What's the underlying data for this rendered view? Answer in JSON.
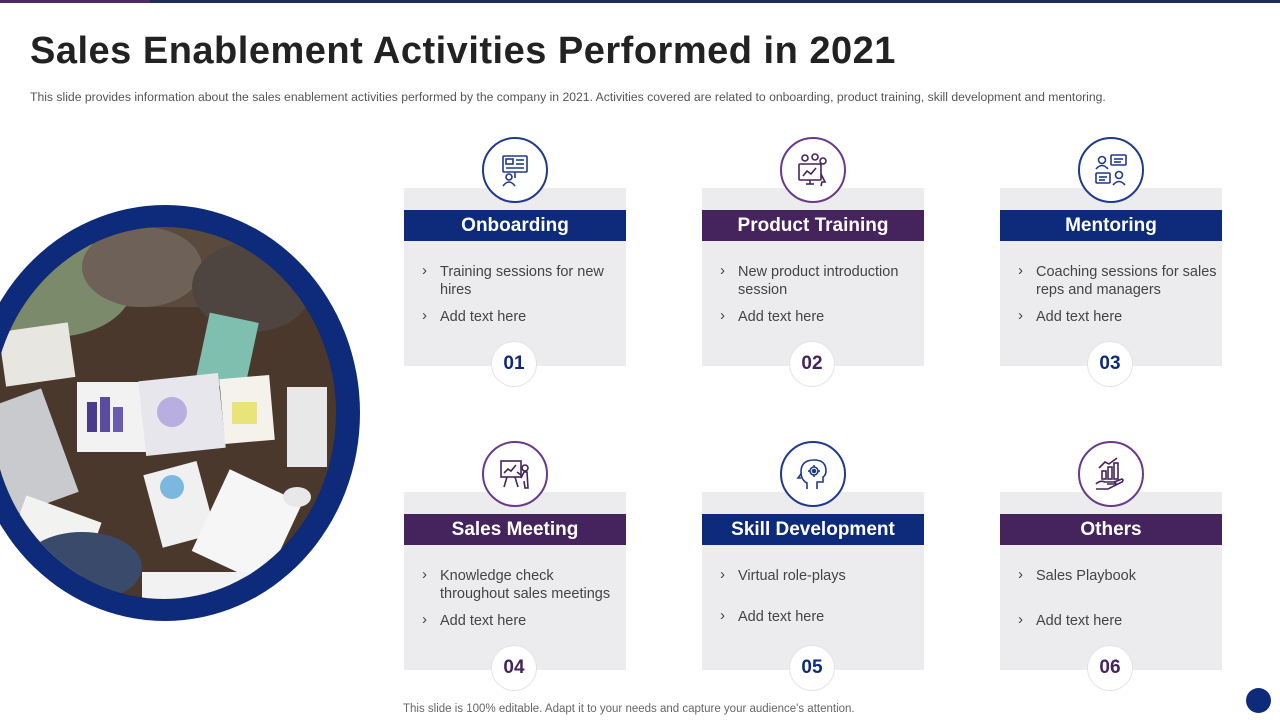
{
  "title": "Sales Enablement Activities Performed in 2021",
  "subtitle": "This slide provides  information  about  the sales enablement  activities  performed  by the company in 2021.  Activities covered  are related to onboarding,  product training,  skill  development  and  mentoring.",
  "footer": "This slide is 100% editable. Adapt it to your needs and capture your audience's attention.",
  "colors": {
    "blue": "#0d2b7a",
    "purple": "#45245e",
    "card_bg": "#ececef"
  },
  "cards": [
    {
      "number": "01",
      "title": "Onboarding",
      "color": "blue",
      "icon": "onboarding-screen-icon",
      "bullets": [
        "Training sessions for new hires",
        "Add text here"
      ]
    },
    {
      "number": "02",
      "title": "Product Training",
      "color": "purple",
      "icon": "product-training-icon",
      "bullets": [
        "New product introduction session",
        "Add text here"
      ]
    },
    {
      "number": "03",
      "title": "Mentoring",
      "color": "blue",
      "icon": "mentoring-people-icon",
      "bullets": [
        "Coaching sessions for sales reps and managers",
        "Add text here"
      ]
    },
    {
      "number": "04",
      "title": "Sales Meeting",
      "color": "purple",
      "icon": "presentation-board-icon",
      "bullets": [
        "Knowledge check throughout sales meetings",
        "Add text here"
      ]
    },
    {
      "number": "05",
      "title": "Skill Development",
      "color": "blue",
      "icon": "head-gear-icon",
      "bullets": [
        "Virtual role-plays",
        "Add text here"
      ]
    },
    {
      "number": "06",
      "title": "Others",
      "color": "purple",
      "icon": "growth-hand-icon",
      "bullets": [
        "Sales Playbook",
        "Add text here"
      ]
    }
  ]
}
